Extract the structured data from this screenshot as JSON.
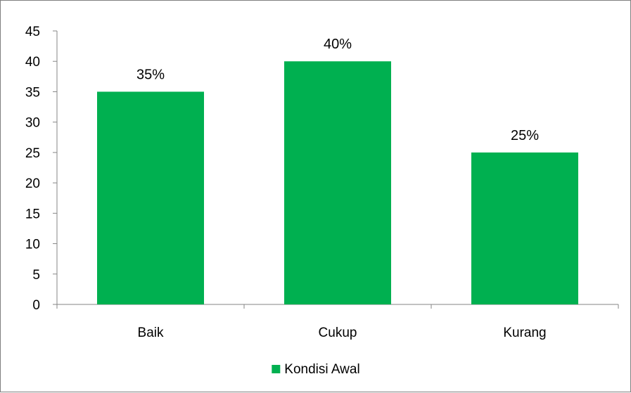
{
  "chart_data": {
    "type": "bar",
    "categories": [
      "Baik",
      "Cukup",
      "Kurang"
    ],
    "series": [
      {
        "name": "Kondisi Awal",
        "values": [
          35,
          40,
          25
        ],
        "data_labels": [
          "35%",
          "40%",
          "25%"
        ],
        "color": "#00b050"
      }
    ],
    "ylim": [
      0,
      45
    ],
    "yticks": [
      0,
      5,
      10,
      15,
      20,
      25,
      30,
      35,
      40,
      45
    ],
    "grid": false,
    "legend": "bottom",
    "title": "",
    "xlabel": "",
    "ylabel": ""
  }
}
